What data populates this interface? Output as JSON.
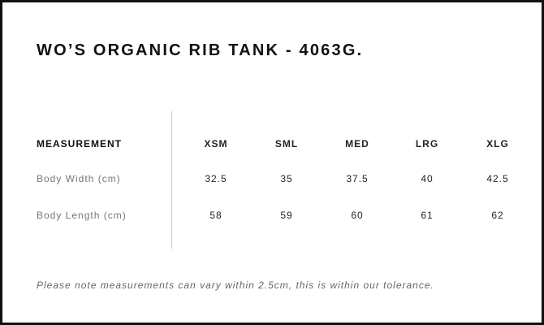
{
  "title": "WO’S ORGANIC RIB TANK - 4063G.",
  "table": {
    "header": {
      "label": "MEASUREMENT",
      "sizes": [
        "XSM",
        "SML",
        "MED",
        "LRG",
        "XLG"
      ]
    },
    "rows": [
      {
        "label": "Body Width (cm)",
        "values": [
          "32.5",
          "35",
          "37.5",
          "40",
          "42.5"
        ]
      },
      {
        "label": "Body Length (cm)",
        "values": [
          "58",
          "59",
          "60",
          "61",
          "62"
        ]
      }
    ]
  },
  "note": "Please note measurements can vary within 2.5cm, this is within our tolerance."
}
